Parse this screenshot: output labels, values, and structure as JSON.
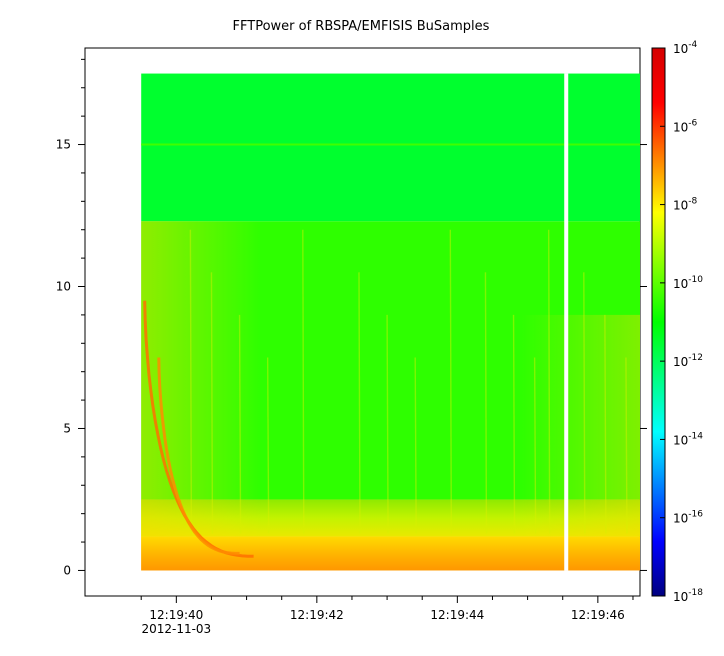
{
  "chart_data": {
    "type": "heatmap",
    "title": "FFTPower of RBSPA/EMFISIS  BuSamples",
    "xlabel": "",
    "ylabel": "",
    "x_axis": {
      "type": "time",
      "range_seconds": [
        "12:19:38.7",
        "12:19:46.6"
      ],
      "ticks": [
        {
          "label": "12:19:40",
          "sublabel": "2012-11-03",
          "value_s": 40
        },
        {
          "label": "12:19:42",
          "value_s": 42
        },
        {
          "label": "12:19:44",
          "value_s": 44
        },
        {
          "label": "12:19:46",
          "value_s": 46
        }
      ],
      "minor_ticks_s": [
        39.5,
        40.5,
        41,
        41.5,
        42.5,
        43,
        43.5,
        44.5,
        45,
        45.5,
        46.5
      ]
    },
    "y_axis": {
      "range": [
        -0.9,
        18.4
      ],
      "ticks": [
        0,
        5,
        10,
        15
      ]
    },
    "colorbar": {
      "scale": "log",
      "range": [
        1e-18,
        0.0001
      ],
      "tick_exponents": [
        -4,
        -6,
        -8,
        -10,
        -12,
        -14,
        -16,
        -18
      ],
      "tick_base": "10",
      "colors": [
        "#00007f",
        "#0000ff",
        "#0080ff",
        "#00ffff",
        "#00ff80",
        "#00ff00",
        "#80ff00",
        "#ffff00",
        "#ff8000",
        "#ff0000",
        "#d40000"
      ]
    },
    "data_extent": {
      "x_start_s": 39.5,
      "x_end_s": 46.6,
      "y_min": 0,
      "y_max": 17.5
    },
    "gap_at_s": 45.55,
    "bands": [
      {
        "y_from": 0,
        "y_to": 1.2,
        "level_exp": -7.5
      },
      {
        "y_from": 1.2,
        "y_to": 2.5,
        "level_exp": -9
      },
      {
        "y_from": 2.5,
        "y_to": 12.3,
        "level_exp": -10.5
      },
      {
        "y_from": 12.3,
        "y_to": 17.5,
        "level_exp": -11.5
      }
    ],
    "line_at_y": 15,
    "whistlers": [
      {
        "t_start_s": 39.55,
        "t_end_s": 41.1,
        "y_top": 9.5,
        "y_bottom": 0.5
      },
      {
        "t_start_s": 39.75,
        "t_end_s": 40.9,
        "y_top": 7.5,
        "y_bottom": 0.6
      }
    ]
  }
}
